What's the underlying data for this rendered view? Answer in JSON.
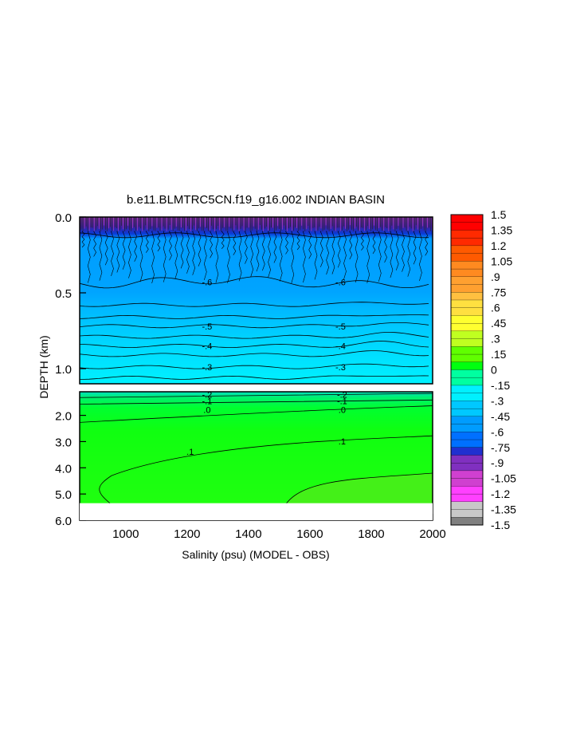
{
  "chart_data": {
    "type": "heatmap",
    "title": "b.e11.BLMTRC5CN.f19_g16.002 INDIAN BASIN",
    "xlabel": "Salinity (psu) (MODEL - OBS)",
    "ylabel": "DEPTH (km)",
    "x_ticks": [
      "1000",
      "1200",
      "1400",
      "1600",
      "1800",
      "2000"
    ],
    "x_tick_values": [
      1000,
      1200,
      1400,
      1600,
      1800,
      2000
    ],
    "xlim": [
      850,
      2000
    ],
    "upper_panel": {
      "ylim": [
        0.0,
        1.1
      ],
      "y_ticks": [
        "0.0",
        "0.5",
        "1.0"
      ],
      "y_tick_values": [
        0.0,
        0.5,
        1.0
      ],
      "contours": [
        {
          "depth": 0.12,
          "label": ""
        },
        {
          "depth": 0.43,
          "label": "-.6"
        },
        {
          "depth": 0.58,
          "label": ""
        },
        {
          "depth": 0.66,
          "label": ""
        },
        {
          "depth": 0.72,
          "label": "-.5"
        },
        {
          "depth": 0.79,
          "label": ""
        },
        {
          "depth": 0.85,
          "label": "-.4"
        },
        {
          "depth": 0.91,
          "label": ""
        },
        {
          "depth": 0.99,
          "label": "-.3"
        },
        {
          "depth": 1.06,
          "label": ""
        }
      ],
      "label_x": [
        1265,
        1700
      ]
    },
    "lower_panel": {
      "ylim": [
        1.1,
        6.0
      ],
      "y_ticks": [
        "2.0",
        "3.0",
        "4.0",
        "5.0",
        "6.0"
      ],
      "y_tick_values": [
        2.0,
        3.0,
        4.0,
        5.0,
        6.0
      ],
      "data_bottom_depth": 5.35,
      "contours": [
        {
          "depth": 1.2,
          "label": "-.2"
        },
        {
          "depth": 1.45,
          "label": "-.1"
        },
        {
          "depth": 1.78,
          "label": ".0"
        }
      ],
      "contour_labels_x": [
        1265,
        1705
      ],
      "contour_01_label": ".1"
    },
    "colorbar": {
      "labels": [
        "1.5",
        "1.35",
        "1.2",
        "1.05",
        ".9",
        ".75",
        ".6",
        ".45",
        ".3",
        ".15",
        "0",
        "-.15",
        "-.3",
        "-.45",
        "-.6",
        "-.75",
        "-.9",
        "-1.05",
        "-1.2",
        "-1.35",
        "-1.5"
      ],
      "values": [
        1.5,
        1.35,
        1.2,
        1.05,
        0.9,
        0.75,
        0.6,
        0.45,
        0.3,
        0.15,
        0,
        -0.15,
        -0.3,
        -0.45,
        -0.6,
        -0.75,
        -0.9,
        -1.05,
        -1.2,
        -1.35,
        -1.5
      ],
      "colors": [
        "#ff0000",
        "#ff2a00",
        "#ff5a00",
        "#ff8a20",
        "#ffa030",
        "#ffc040",
        "#ffe040",
        "#ffff30",
        "#c0ff20",
        "#60ff00",
        "#00ff10",
        "#00ffa0",
        "#00f0ff",
        "#00c8ff",
        "#009cff",
        "#0070ff",
        "#2030d0",
        "#8030c0",
        "#d040d0",
        "#ff40ff",
        "#c8c8c8",
        "#808080"
      ]
    },
    "grid": false,
    "legend": "right colorbar"
  }
}
